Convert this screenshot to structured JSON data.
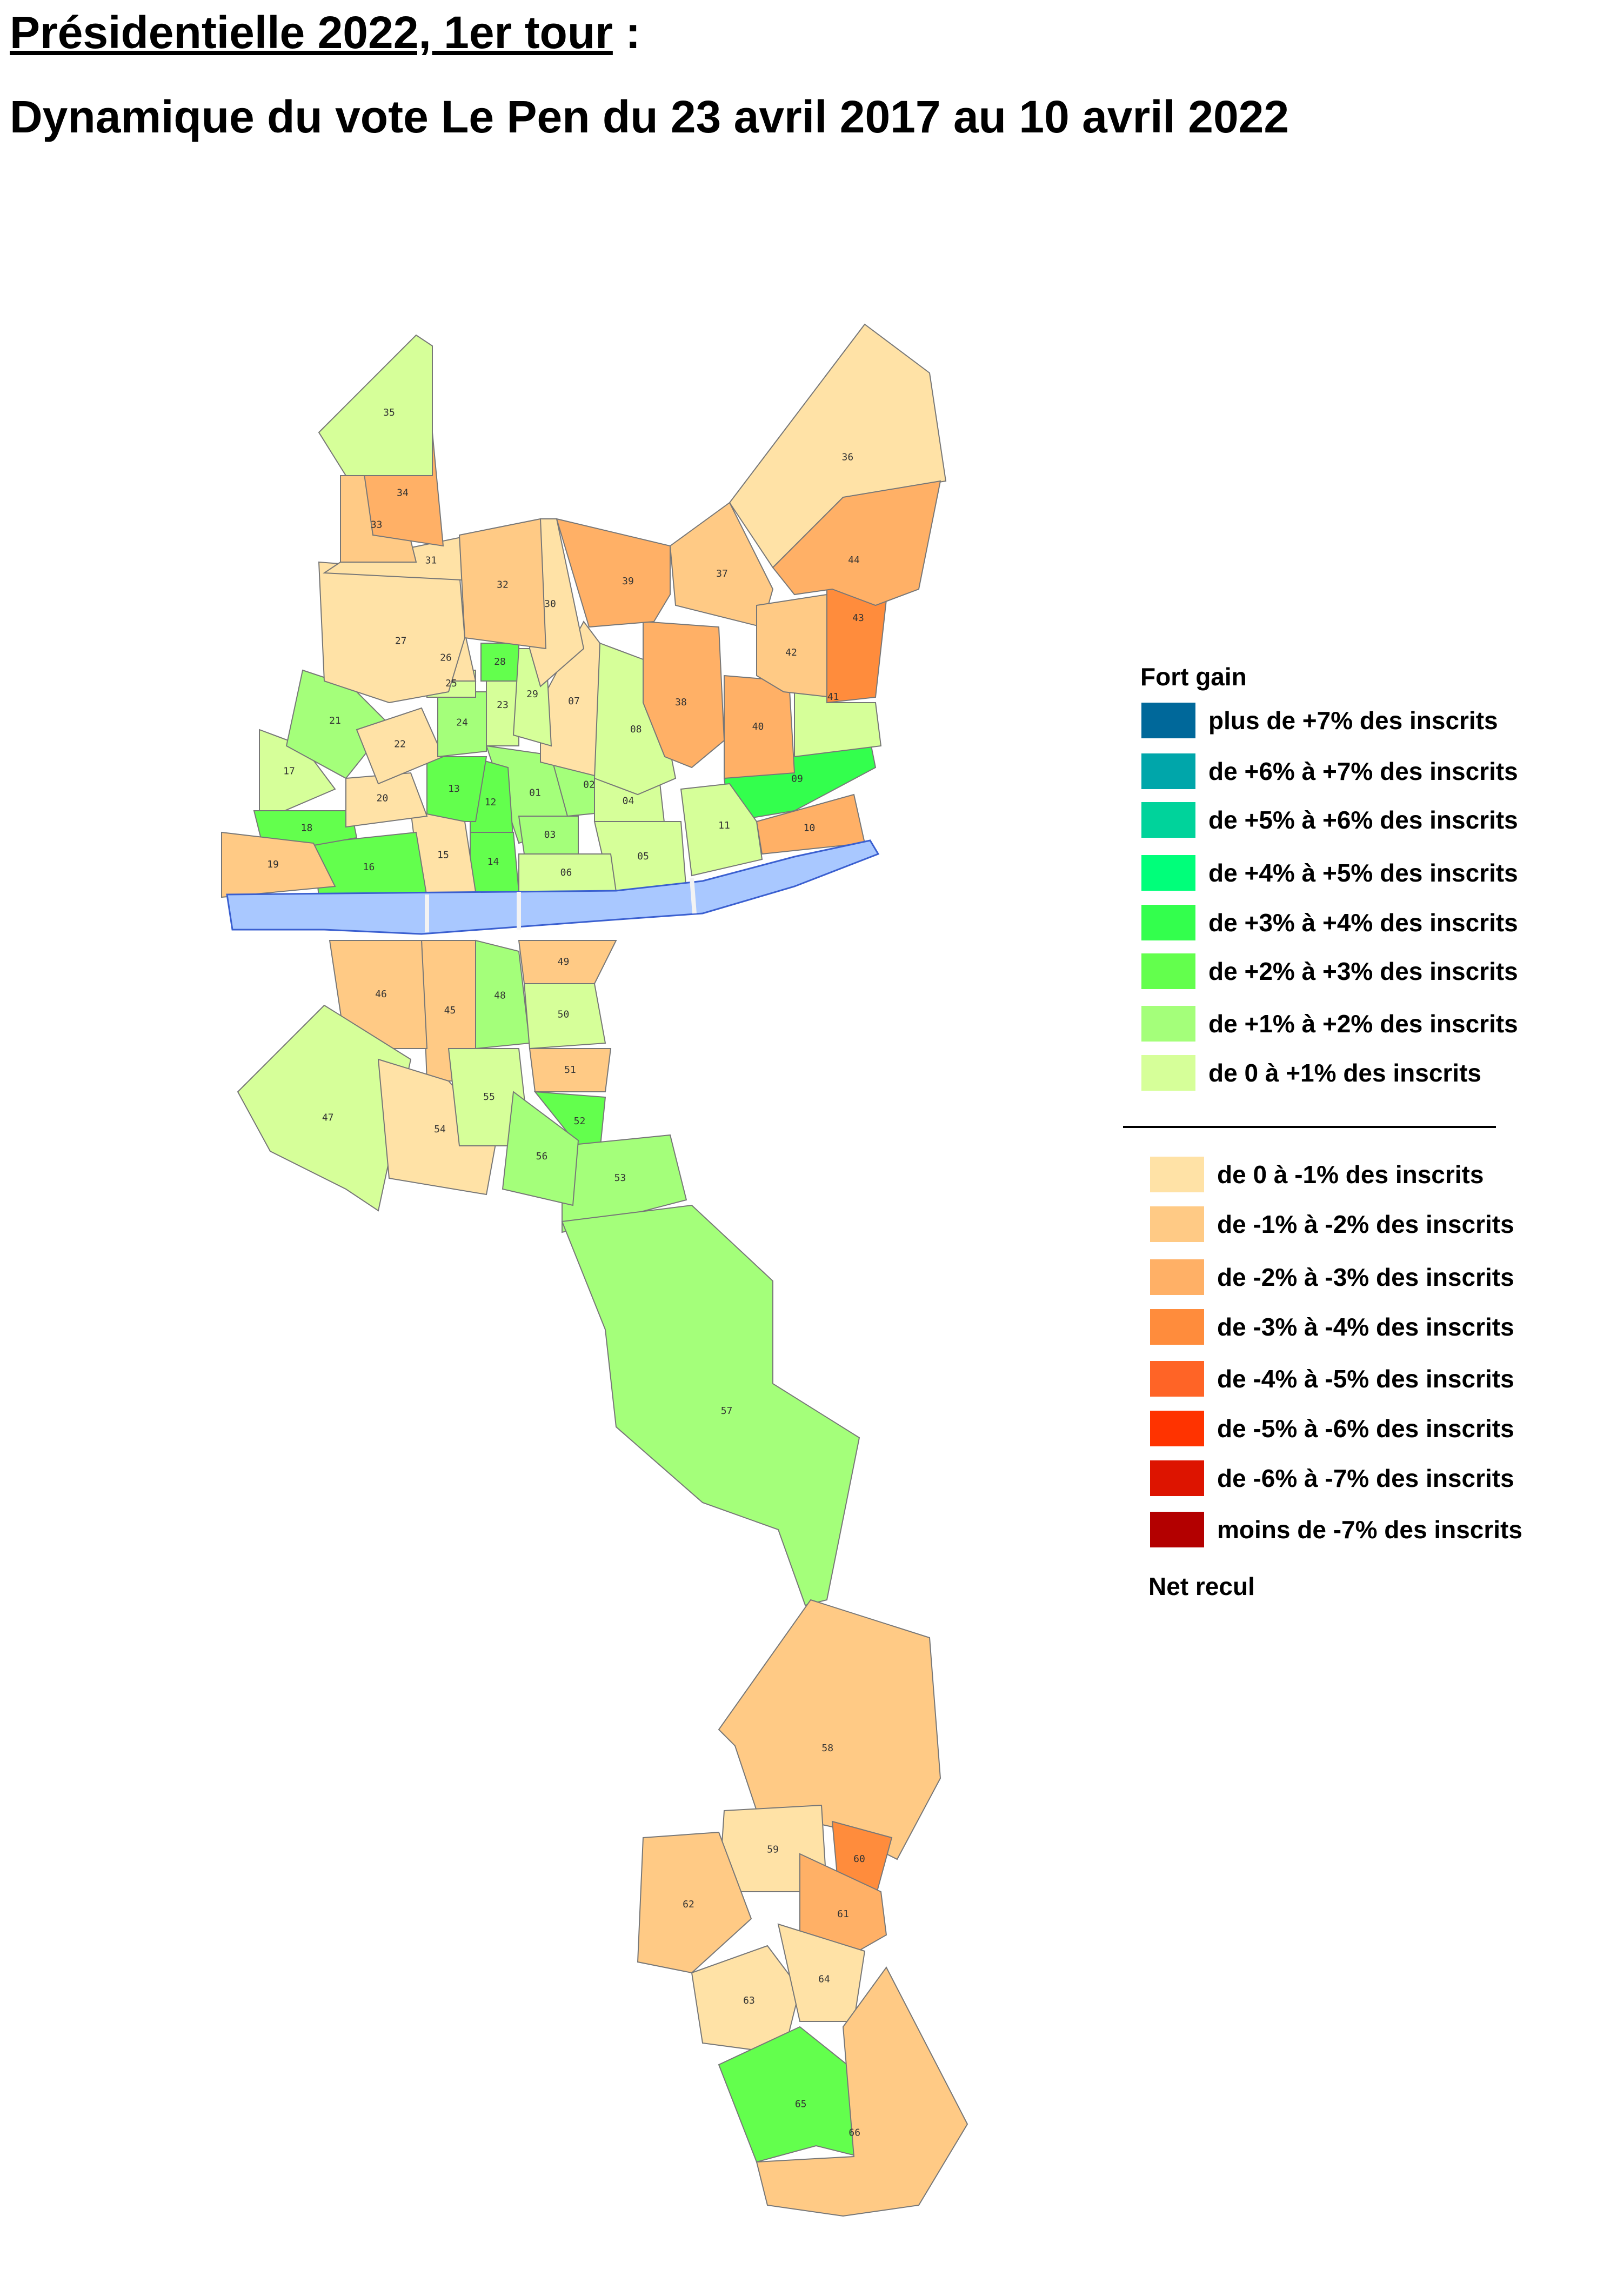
{
  "title": {
    "line1_main": "Présidentielle 2022, 1er tour",
    "line1_suffix": " :",
    "line2": "Dynamique du vote Le Pen du 23 avril 2017 au 10 avril 2022"
  },
  "legend": {
    "heading": "Fort gain",
    "footer": "Net recul",
    "gain_items": [
      {
        "label": "plus de +7% des inscrits",
        "color": "#00689a"
      },
      {
        "label": "de +6% à +7% des inscrits",
        "color": "#00a6aa"
      },
      {
        "label": "de +5% à +6% des inscrits",
        "color": "#00d39b"
      },
      {
        "label": "de +4% à +5% des inscrits",
        "color": "#00ff7a"
      },
      {
        "label": "de +3% à +4% des inscrits",
        "color": "#33ff4d"
      },
      {
        "label": "de +2% à +3% des inscrits",
        "color": "#63ff4d"
      },
      {
        "label": "de +1% à +2% des inscrits",
        "color": "#a4ff7a"
      },
      {
        "label": "de 0 à +1% des inscrits",
        "color": "#d6ff99"
      }
    ],
    "loss_items": [
      {
        "label": "de 0 à -1% des inscrits",
        "color": "#ffe2a6"
      },
      {
        "label": "de -1% à -2% des inscrits",
        "color": "#ffca85"
      },
      {
        "label": "de -2% à -3% des inscrits",
        "color": "#ffb066"
      },
      {
        "label": "de -3% à -4% des inscrits",
        "color": "#ff8c3c"
      },
      {
        "label": "de -4% à -5% des inscrits",
        "color": "#ff6426"
      },
      {
        "label": "de -5% à -6% des inscrits",
        "color": "#ff3300"
      },
      {
        "label": "de -6% à -7% des inscrits",
        "color": "#dd1400"
      },
      {
        "label": "moins de -7% des inscrits",
        "color": "#b30000"
      }
    ]
  },
  "map": {
    "river_color": "#a9c8ff",
    "precincts": [
      {
        "id": "01",
        "class": "de +1% à +2% des inscrits"
      },
      {
        "id": "02",
        "class": "de +1% à +2% des inscrits"
      },
      {
        "id": "03",
        "class": "de +1% à +2% des inscrits"
      },
      {
        "id": "04",
        "class": "de 0 à +1% des inscrits"
      },
      {
        "id": "05",
        "class": "de 0 à +1% des inscrits"
      },
      {
        "id": "06",
        "class": "de 0 à +1% des inscrits"
      },
      {
        "id": "07",
        "class": "de 0 à -1% des inscrits"
      },
      {
        "id": "08",
        "class": "de 0 à +1% des inscrits"
      },
      {
        "id": "09",
        "class": "de +3% à +4% des inscrits"
      },
      {
        "id": "10",
        "class": "de -2% à -3% des inscrits"
      },
      {
        "id": "11",
        "class": "de 0 à +1% des inscrits"
      },
      {
        "id": "12",
        "class": "de +2% à +3% des inscrits"
      },
      {
        "id": "13",
        "class": "de +2% à +3% des inscrits"
      },
      {
        "id": "14",
        "class": "de +2% à +3% des inscrits"
      },
      {
        "id": "15",
        "class": "de 0 à -1% des inscrits"
      },
      {
        "id": "16",
        "class": "de +2% à +3% des inscrits"
      },
      {
        "id": "17",
        "class": "de 0 à +1% des inscrits"
      },
      {
        "id": "18",
        "class": "de +2% à +3% des inscrits"
      },
      {
        "id": "19",
        "class": "de -1% à -2% des inscrits"
      },
      {
        "id": "20",
        "class": "de 0 à -1% des inscrits"
      },
      {
        "id": "21",
        "class": "de +1% à +2% des inscrits"
      },
      {
        "id": "22",
        "class": "de 0 à -1% des inscrits"
      },
      {
        "id": "23",
        "class": "de 0 à +1% des inscrits"
      },
      {
        "id": "24",
        "class": "de +1% à +2% des inscrits"
      },
      {
        "id": "25",
        "class": "de 0 à +1% des inscrits"
      },
      {
        "id": "26",
        "class": "de 0 à -1% des inscrits"
      },
      {
        "id": "27",
        "class": "de 0 à -1% des inscrits"
      },
      {
        "id": "28",
        "class": "de +2% à +3% des inscrits"
      },
      {
        "id": "29",
        "class": "de 0 à +1% des inscrits"
      },
      {
        "id": "30",
        "class": "de 0 à -1% des inscrits"
      },
      {
        "id": "31",
        "class": "de 0 à -1% des inscrits"
      },
      {
        "id": "32",
        "class": "de -1% à -2% des inscrits"
      },
      {
        "id": "33",
        "class": "de -1% à -2% des inscrits"
      },
      {
        "id": "34",
        "class": "de -2% à -3% des inscrits"
      },
      {
        "id": "35",
        "class": "de 0 à +1% des inscrits"
      },
      {
        "id": "36",
        "class": "de 0 à -1% des inscrits"
      },
      {
        "id": "37",
        "class": "de -1% à -2% des inscrits"
      },
      {
        "id": "38",
        "class": "de -2% à -3% des inscrits"
      },
      {
        "id": "39",
        "class": "de -2% à -3% des inscrits"
      },
      {
        "id": "40",
        "class": "de -2% à -3% des inscrits"
      },
      {
        "id": "41",
        "class": "de 0 à +1% des inscrits"
      },
      {
        "id": "42",
        "class": "de -1% à -2% des inscrits"
      },
      {
        "id": "43",
        "class": "de -3% à -4% des inscrits"
      },
      {
        "id": "44",
        "class": "de -2% à -3% des inscrits"
      },
      {
        "id": "45",
        "class": "de -1% à -2% des inscrits"
      },
      {
        "id": "46",
        "class": "de -1% à -2% des inscrits"
      },
      {
        "id": "47",
        "class": "de 0 à +1% des inscrits"
      },
      {
        "id": "48",
        "class": "de +1% à +2% des inscrits"
      },
      {
        "id": "49",
        "class": "de -1% à -2% des inscrits"
      },
      {
        "id": "50",
        "class": "de 0 à +1% des inscrits"
      },
      {
        "id": "51",
        "class": "de -1% à -2% des inscrits"
      },
      {
        "id": "52",
        "class": "de +2% à +3% des inscrits"
      },
      {
        "id": "53",
        "class": "de +1% à +2% des inscrits"
      },
      {
        "id": "54",
        "class": "de 0 à -1% des inscrits"
      },
      {
        "id": "55",
        "class": "de 0 à +1% des inscrits"
      },
      {
        "id": "56",
        "class": "de +1% à +2% des inscrits"
      },
      {
        "id": "57",
        "class": "de +1% à +2% des inscrits"
      },
      {
        "id": "58",
        "class": "de -1% à -2% des inscrits"
      },
      {
        "id": "59",
        "class": "de 0 à -1% des inscrits"
      },
      {
        "id": "60",
        "class": "de -3% à -4% des inscrits"
      },
      {
        "id": "61",
        "class": "de -2% à -3% des inscrits"
      },
      {
        "id": "62",
        "class": "de -1% à -2% des inscrits"
      },
      {
        "id": "63",
        "class": "de 0 à -1% des inscrits"
      },
      {
        "id": "64",
        "class": "de 0 à -1% des inscrits"
      },
      {
        "id": "65",
        "class": "de +2% à +3% des inscrits"
      },
      {
        "id": "66",
        "class": "de -1% à -2% des inscrits"
      }
    ]
  }
}
